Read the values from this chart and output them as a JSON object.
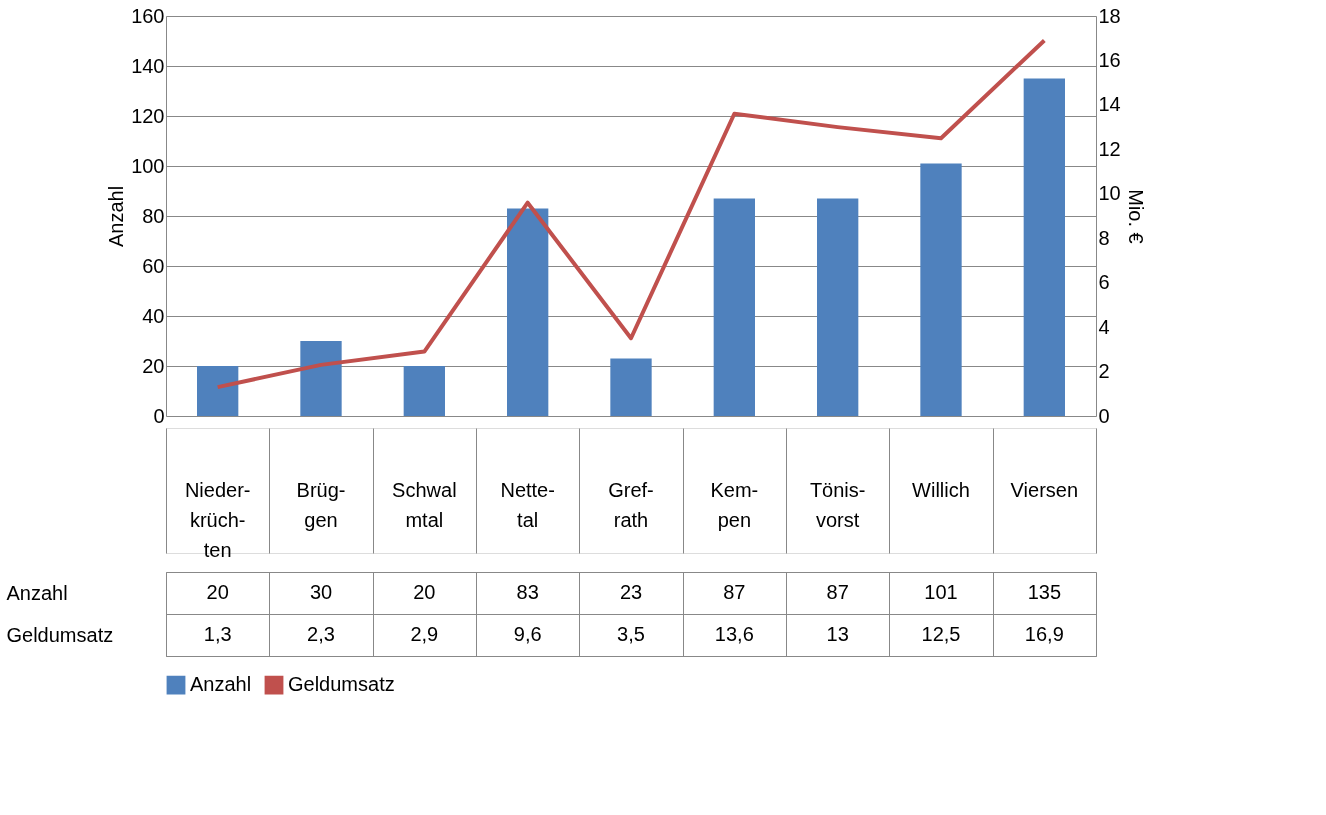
{
  "chart_data": {
    "type": "bar",
    "categories": [
      "Nieder-\nkrüch-\nten",
      "Brüg-\ngen",
      "Schwal\nmtal",
      "Nette-\ntal",
      "Gref-\nrath",
      "Kem-\npen",
      "Tönis-\nvorst",
      "Willich",
      "Viersen"
    ],
    "series": [
      {
        "name": "Anzahl",
        "color": "#4f81bd",
        "values": [
          20,
          30,
          20,
          83,
          23,
          87,
          87,
          101,
          135
        ],
        "value_labels": [
          "20",
          "30",
          "20",
          "83",
          "23",
          "87",
          "87",
          "101",
          "135"
        ]
      },
      {
        "name": "Geldumsatz",
        "type": "line",
        "axis": "y2",
        "color": "#c0504d",
        "values": [
          1.3,
          2.3,
          2.9,
          9.6,
          3.5,
          13.6,
          13,
          12.5,
          16.9
        ],
        "value_labels": [
          "1,3",
          "2,3",
          "2,9",
          "9,6",
          "3,5",
          "13,6",
          "13",
          "12,5",
          "16,9"
        ]
      }
    ],
    "ylabel": "Anzahl",
    "y2label": "Mio. €",
    "ylim": [
      0,
      160
    ],
    "yticks": [
      0,
      20,
      40,
      60,
      80,
      100,
      120,
      140,
      160
    ],
    "y2lim": [
      0,
      18
    ],
    "y2ticks": [
      0,
      2,
      4,
      6,
      8,
      10,
      12,
      14,
      16,
      18
    ],
    "grid": "y",
    "legend": "bottom"
  }
}
